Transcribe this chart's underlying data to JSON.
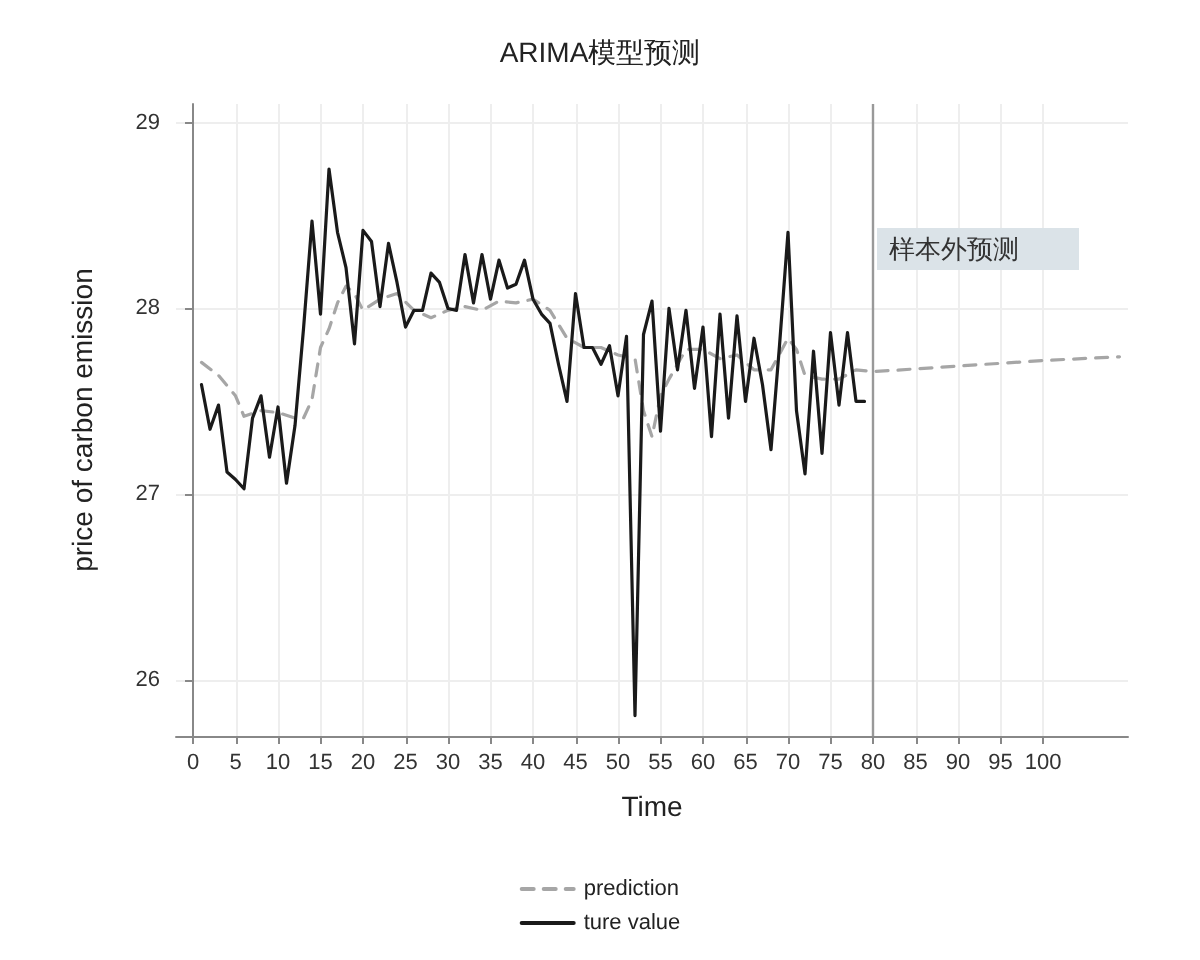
{
  "chart_data": {
    "type": "line",
    "title": "ARIMA模型预测",
    "xlabel": "Time",
    "ylabel": "price of carbon emission",
    "x": [
      1,
      2,
      3,
      4,
      5,
      6,
      7,
      8,
      9,
      10,
      11,
      12,
      13,
      14,
      15,
      16,
      17,
      18,
      19,
      20,
      21,
      22,
      23,
      24,
      25,
      26,
      27,
      28,
      29,
      30,
      31,
      32,
      33,
      34,
      35,
      36,
      37,
      38,
      39,
      40,
      41,
      42,
      43,
      44,
      45,
      46,
      47,
      48,
      49,
      50,
      51,
      52,
      53,
      54,
      55,
      56,
      57,
      58,
      59,
      60,
      61,
      62,
      63,
      64,
      65,
      66,
      67,
      68,
      69,
      70,
      71,
      72,
      73,
      74,
      75,
      76,
      77,
      78,
      79
    ],
    "series": [
      {
        "name": "prediction",
        "color": "#a6a6a6",
        "line_style": "dashed",
        "x": [
          1,
          3,
          5,
          6,
          8,
          10,
          12,
          13,
          14,
          15,
          16,
          17,
          18,
          19,
          20,
          22,
          24,
          26,
          28,
          30,
          32,
          34,
          36,
          38,
          40,
          42,
          44,
          46,
          48,
          50,
          52,
          53,
          54,
          55,
          56,
          58,
          60,
          62,
          64,
          66,
          68,
          70,
          71,
          72,
          74,
          76,
          78,
          80,
          90,
          100,
          109
        ],
        "values": [
          27.71,
          27.64,
          27.53,
          27.42,
          27.45,
          27.44,
          27.41,
          27.41,
          27.51,
          27.79,
          27.89,
          28.03,
          28.12,
          28.08,
          27.99,
          28.05,
          28.08,
          27.99,
          27.95,
          27.99,
          28.01,
          27.99,
          28.04,
          28.03,
          28.05,
          27.99,
          27.84,
          27.79,
          27.79,
          27.75,
          27.73,
          27.45,
          27.31,
          27.53,
          27.62,
          27.78,
          27.78,
          27.73,
          27.75,
          27.67,
          27.67,
          27.84,
          27.78,
          27.64,
          27.62,
          27.62,
          27.67,
          27.66,
          27.69,
          27.72,
          27.74
        ]
      },
      {
        "name": "ture value",
        "color": "#1a1a1a",
        "line_style": "solid",
        "values": [
          27.59,
          27.35,
          27.48,
          27.12,
          27.08,
          27.03,
          27.41,
          27.53,
          27.2,
          27.47,
          27.06,
          27.37,
          27.89,
          28.47,
          27.97,
          28.75,
          28.41,
          28.22,
          27.81,
          28.42,
          28.36,
          28.01,
          28.35,
          28.14,
          27.9,
          27.99,
          27.99,
          28.19,
          28.14,
          28.0,
          27.99,
          28.29,
          28.03,
          28.29,
          28.05,
          28.26,
          28.11,
          28.13,
          28.26,
          28.05,
          27.97,
          27.92,
          27.7,
          27.5,
          28.08,
          27.79,
          27.79,
          27.7,
          27.8,
          27.53,
          27.85,
          25.81,
          27.86,
          28.04,
          27.34,
          28.0,
          27.67,
          27.99,
          27.57,
          27.9,
          27.31,
          27.97,
          27.41,
          27.96,
          27.5,
          27.84,
          27.59,
          27.24,
          27.8,
          28.41,
          27.45,
          27.11,
          27.77,
          27.22,
          27.87,
          27.48,
          27.87,
          27.5,
          27.5
        ]
      }
    ],
    "xlim": [
      -2,
      110
    ],
    "xticks": [
      0,
      5,
      10,
      15,
      20,
      25,
      30,
      35,
      40,
      45,
      50,
      55,
      60,
      65,
      70,
      75,
      80,
      85,
      90,
      95,
      100
    ],
    "ylim": [
      25.7,
      29.1
    ],
    "yticks": [
      26,
      27,
      28,
      29
    ],
    "ref_lines": [
      {
        "axis": "x",
        "value": 80,
        "color": "#999999"
      }
    ],
    "annotations": [
      {
        "text": "样本外预测",
        "x": 80,
        "y": 28.32
      }
    ],
    "grid": true,
    "legend": "bottom",
    "marker": "none"
  }
}
